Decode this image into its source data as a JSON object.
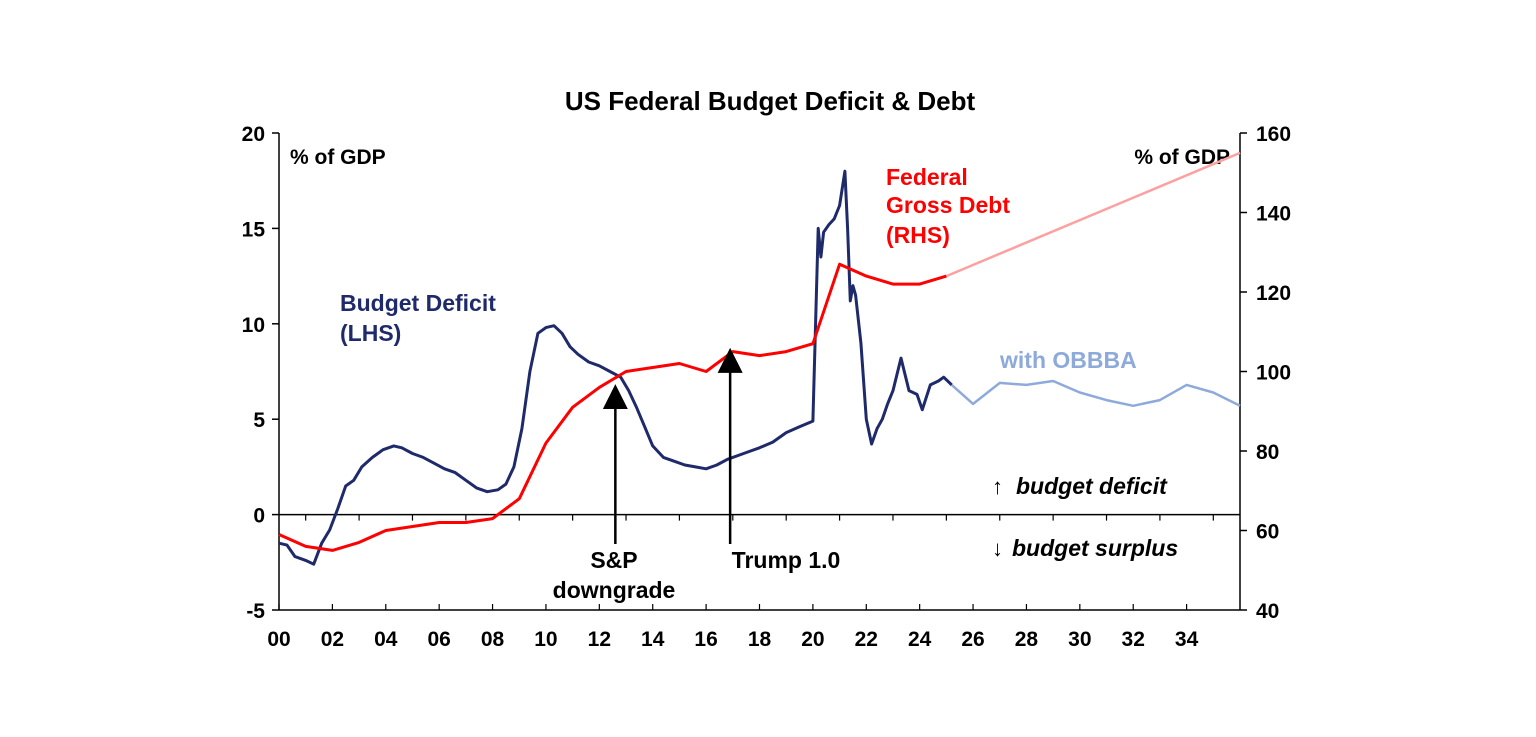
{
  "chart_data": {
    "type": "line",
    "title": "US Federal Budget Deficit & Debt",
    "left_axis": {
      "unit_label": "% of GDP",
      "range": [
        -5,
        20
      ],
      "ticks": [
        -5,
        0,
        5,
        10,
        15,
        20
      ]
    },
    "right_axis": {
      "unit_label": "% of GDP",
      "range": [
        40,
        160
      ],
      "ticks": [
        40,
        60,
        80,
        100,
        120,
        140,
        160
      ]
    },
    "x_axis": {
      "range": [
        2000,
        2036
      ],
      "tick_labels": [
        "00",
        "02",
        "04",
        "06",
        "08",
        "10",
        "12",
        "14",
        "16",
        "18",
        "20",
        "22",
        "24",
        "26",
        "28",
        "30",
        "32",
        "34"
      ],
      "tick_values": [
        2000,
        2002,
        2004,
        2006,
        2008,
        2010,
        2012,
        2014,
        2016,
        2018,
        2020,
        2022,
        2024,
        2026,
        2028,
        2030,
        2032,
        2034
      ]
    },
    "series": [
      {
        "name": "Budget Deficit (LHS)",
        "axis": "left",
        "color": "#1f2a6b",
        "x": [
          2000.0,
          2000.3,
          2000.6,
          2001.0,
          2001.3,
          2001.6,
          2001.9,
          2002.2,
          2002.5,
          2002.8,
          2003.1,
          2003.5,
          2003.9,
          2004.3,
          2004.6,
          2005.0,
          2005.4,
          2005.8,
          2006.2,
          2006.6,
          2007.0,
          2007.4,
          2007.8,
          2008.2,
          2008.5,
          2008.8,
          2009.1,
          2009.4,
          2009.7,
          2010.0,
          2010.3,
          2010.6,
          2010.9,
          2011.2,
          2011.6,
          2012.0,
          2012.4,
          2012.8,
          2013.1,
          2013.4,
          2013.7,
          2014.0,
          2014.4,
          2014.8,
          2015.2,
          2015.6,
          2016.0,
          2016.4,
          2016.8,
          2017.2,
          2017.6,
          2018.0,
          2018.5,
          2019.0,
          2019.5,
          2020.0,
          2020.2,
          2020.3,
          2020.4,
          2020.6,
          2020.8,
          2021.0,
          2021.2,
          2021.3,
          2021.4,
          2021.5,
          2021.6,
          2021.8,
          2022.0,
          2022.2,
          2022.4,
          2022.6,
          2022.8,
          2023.0,
          2023.3,
          2023.6,
          2023.9,
          2024.1,
          2024.4,
          2024.7,
          2024.9,
          2025.2
        ],
        "values": [
          -1.5,
          -1.6,
          -2.2,
          -2.4,
          -2.6,
          -1.5,
          -0.8,
          0.3,
          1.5,
          1.8,
          2.5,
          3.0,
          3.4,
          3.6,
          3.5,
          3.2,
          3.0,
          2.7,
          2.4,
          2.2,
          1.8,
          1.4,
          1.2,
          1.3,
          1.6,
          2.5,
          4.5,
          7.5,
          9.5,
          9.8,
          9.9,
          9.5,
          8.8,
          8.4,
          8.0,
          7.8,
          7.5,
          7.2,
          6.5,
          5.6,
          4.6,
          3.6,
          3.0,
          2.8,
          2.6,
          2.5,
          2.4,
          2.6,
          2.9,
          3.1,
          3.3,
          3.5,
          3.8,
          4.3,
          4.6,
          4.9,
          15.0,
          13.5,
          14.8,
          15.2,
          15.5,
          16.2,
          18.0,
          15.0,
          11.2,
          12.0,
          11.5,
          9.0,
          5.0,
          3.7,
          4.5,
          5.0,
          5.8,
          6.5,
          8.2,
          6.5,
          6.3,
          5.5,
          6.8,
          7.0,
          7.2,
          6.8
        ]
      },
      {
        "name": "Budget Deficit with OBBBA (projection)",
        "axis": "left",
        "color": "#8eaadb",
        "x": [
          2025.2,
          2026.0,
          2027.0,
          2028.0,
          2029.0,
          2030.0,
          2031.0,
          2032.0,
          2033.0,
          2034.0,
          2035.0,
          2036.0
        ],
        "values": [
          6.8,
          5.8,
          6.9,
          6.8,
          7.0,
          6.4,
          6.0,
          5.7,
          6.0,
          6.8,
          6.4,
          5.7
        ]
      },
      {
        "name": "Federal Gross Debt (RHS)",
        "axis": "right",
        "color": "#ff0000",
        "x": [
          2000,
          2001,
          2002,
          2003,
          2004,
          2005,
          2006,
          2007,
          2008,
          2009,
          2010,
          2011,
          2012,
          2013,
          2014,
          2015,
          2016,
          2017,
          2018,
          2019,
          2020,
          2021,
          2022,
          2023,
          2024,
          2025
        ],
        "values": [
          59,
          56,
          55,
          57,
          60,
          61,
          62,
          62,
          63,
          68,
          82,
          91,
          96,
          100,
          101,
          102,
          100,
          105,
          104,
          105,
          107,
          127,
          124,
          122,
          122,
          124
        ]
      },
      {
        "name": "Federal Gross Debt projection",
        "axis": "right",
        "color": "#ffa0a0",
        "x": [
          2025,
          2036
        ],
        "values": [
          124,
          155
        ]
      }
    ],
    "annotations": [
      {
        "text": "S&P",
        "text2": "downgrade",
        "x": 2011.6,
        "arrow_to_value": 6.5
      },
      {
        "text": "Trump 1.0",
        "x": 2017.0,
        "arrow_to_value": 8.4
      }
    ]
  },
  "labels": {
    "deficit_line1": "Budget Deficit",
    "deficit_line2": "(LHS)",
    "debt_line1": "Federal",
    "debt_line2": "Gross Debt",
    "debt_line3": "(RHS)",
    "obbba": "with OBBBA",
    "sp_line1": "S&P",
    "sp_line2": "downgrade",
    "trump": "Trump 1.0",
    "budget_deficit": "budget deficit",
    "budget_surplus": "budget surplus",
    "arrow_up": "↑",
    "arrow_down": "↓"
  }
}
